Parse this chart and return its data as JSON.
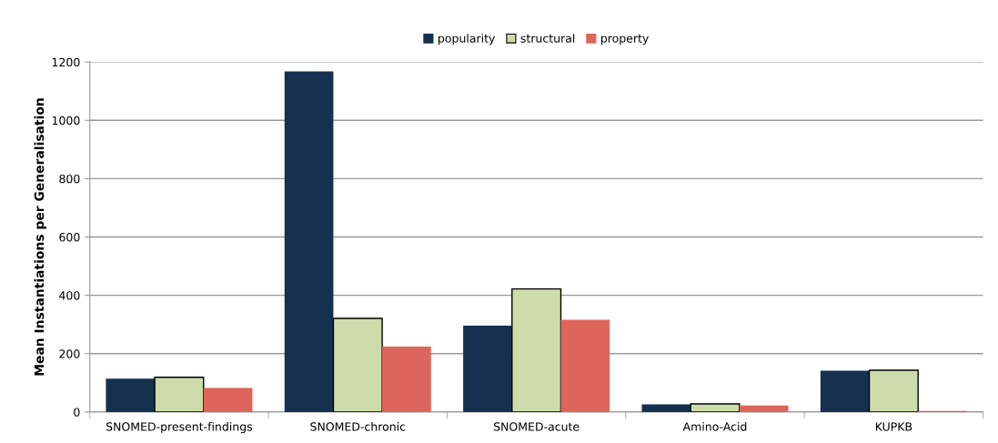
{
  "chart_data": {
    "type": "bar",
    "ylabel": "Mean Instantiations per Generalisation",
    "categories": [
      "SNOMED-present-findings",
      "SNOMED-chronic",
      "SNOMED-acute",
      "Amino-Acid",
      "KUPKB"
    ],
    "series": [
      {
        "name": "popularity",
        "color": "#16304f",
        "values": [
          114,
          1168,
          296,
          26,
          142
        ]
      },
      {
        "name": "structural",
        "color": "#cddcaa",
        "values": [
          119,
          321,
          422,
          28,
          143
        ]
      },
      {
        "name": "property",
        "color": "#de655c",
        "values": [
          82,
          224,
          316,
          22,
          4
        ]
      }
    ],
    "ylim": [
      0,
      1200
    ],
    "yticks": [
      0,
      200,
      400,
      600,
      800,
      1000,
      1200
    ],
    "grid": "y",
    "legend": "top"
  }
}
